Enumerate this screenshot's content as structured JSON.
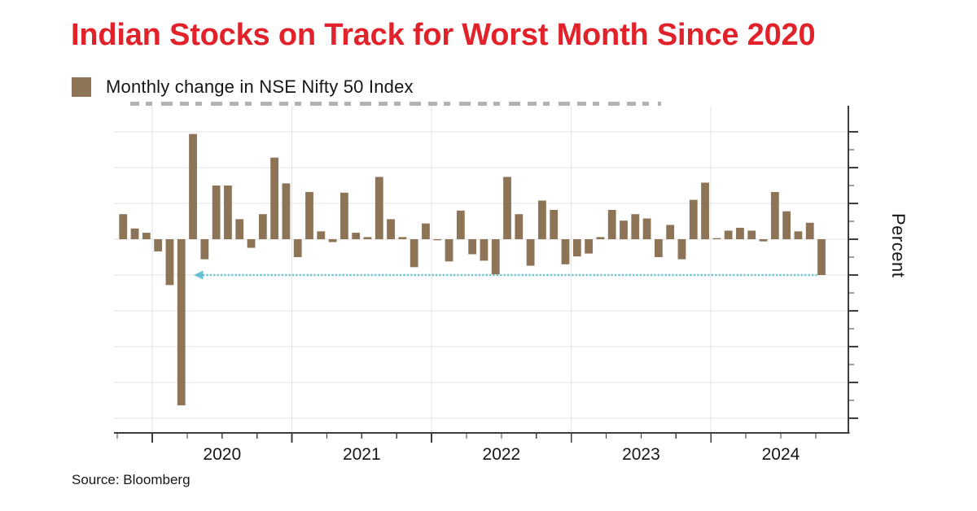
{
  "title": "Indian Stocks on Track for Worst Month Since 2020",
  "legend": {
    "label": "Monthly change in NSE Nifty 50 Index"
  },
  "source": "Source: Bloomberg",
  "y_axis_label": "Percent",
  "colors": {
    "title": "#e2222a",
    "bar": "#8d7456",
    "accent_line": "#5fc0d3",
    "grid": "#e3e3e3",
    "axis": "#3d3d3d",
    "text": "#161616",
    "background": "#ffffff"
  },
  "chart_data": {
    "type": "bar",
    "title": "Monthly change in NSE Nifty 50 Index",
    "xlabel": "",
    "ylabel": "Percent",
    "ylim": [
      -27,
      18.6
    ],
    "grid": true,
    "legend_position": "top-left",
    "y_major_ticks": [
      15,
      10,
      5,
      0,
      -5,
      -10,
      -15,
      -20,
      -25
    ],
    "y_minor_ticks": [
      12.5,
      7.5,
      2.5,
      -2.5,
      -7.5,
      -12.5,
      -17.5,
      -22.5
    ],
    "x_year_ticks": [
      "2020",
      "2021",
      "2022",
      "2023",
      "2024"
    ],
    "x": [
      "2019-10",
      "2019-11",
      "2019-12",
      "2020-01",
      "2020-02",
      "2020-03",
      "2020-04",
      "2020-05",
      "2020-06",
      "2020-07",
      "2020-08",
      "2020-09",
      "2020-10",
      "2020-11",
      "2020-12",
      "2021-01",
      "2021-02",
      "2021-03",
      "2021-04",
      "2021-05",
      "2021-06",
      "2021-07",
      "2021-08",
      "2021-09",
      "2021-10",
      "2021-11",
      "2021-12",
      "2022-01",
      "2022-02",
      "2022-03",
      "2022-04",
      "2022-05",
      "2022-06",
      "2022-07",
      "2022-08",
      "2022-09",
      "2022-10",
      "2022-11",
      "2022-12",
      "2023-01",
      "2023-02",
      "2023-03",
      "2023-04",
      "2023-05",
      "2023-06",
      "2023-07",
      "2023-08",
      "2023-09",
      "2023-10",
      "2023-11",
      "2023-12",
      "2024-01",
      "2024-02",
      "2024-03",
      "2024-04",
      "2024-05",
      "2024-06",
      "2024-07",
      "2024-08",
      "2024-09",
      "2024-10"
    ],
    "values": [
      3.5,
      1.5,
      0.9,
      -1.7,
      -6.4,
      -23.2,
      14.7,
      -2.8,
      7.5,
      7.5,
      2.8,
      -1.2,
      3.5,
      11.4,
      7.8,
      -2.5,
      6.6,
      1.1,
      -0.4,
      6.5,
      0.9,
      0.3,
      8.7,
      2.8,
      0.3,
      -3.9,
      2.2,
      -0.1,
      -3.1,
      4.0,
      -2.1,
      -3.0,
      -4.9,
      8.7,
      3.5,
      -3.7,
      5.4,
      4.1,
      -3.5,
      -2.4,
      -2.0,
      0.3,
      4.1,
      2.6,
      3.5,
      2.9,
      -2.5,
      2.0,
      -2.8,
      5.5,
      7.9,
      0.0,
      1.2,
      1.6,
      1.2,
      -0.3,
      6.6,
      3.9,
      1.1,
      2.3,
      -5.0
    ],
    "annotation": {
      "type": "dotted-line-arrow",
      "y": -5,
      "x_start": "2020-04",
      "x_end": "2024-10",
      "arrow_direction": "left",
      "color": "#5fc0d3"
    }
  }
}
